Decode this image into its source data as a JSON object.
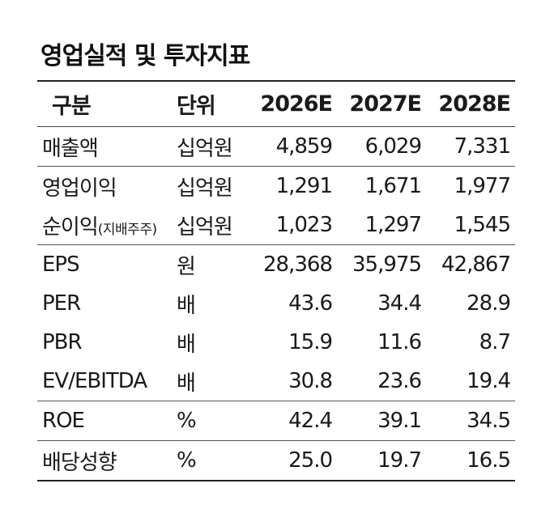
{
  "title": "영업실적 및 투자지표",
  "header": {
    "col0": "구분",
    "col1": "단위",
    "y1": "2026E",
    "y2": "2027E",
    "y3": "2028E"
  },
  "rows": [
    {
      "label": "매출액",
      "unit": "십억원",
      "v1": "4,859",
      "v2": "6,029",
      "v3": "7,331"
    },
    {
      "label": "영업이익",
      "unit": "십억원",
      "v1": "1,291",
      "v2": "1,671",
      "v3": "1,977"
    },
    {
      "label": "순이익",
      "label_sub": "(지배주주)",
      "unit": "십억원",
      "v1": "1,023",
      "v2": "1,297",
      "v3": "1,545"
    },
    {
      "label": "EPS",
      "unit": "원",
      "v1": "28,368",
      "v2": "35,975",
      "v3": "42,867"
    },
    {
      "label": "PER",
      "unit": "배",
      "v1": "43.6",
      "v2": "34.4",
      "v3": "28.9"
    },
    {
      "label": "PBR",
      "unit": "배",
      "v1": "15.9",
      "v2": "11.6",
      "v3": "8.7"
    },
    {
      "label": "EV/EBITDA",
      "unit": "배",
      "v1": "30.8",
      "v2": "23.6",
      "v3": "19.4"
    },
    {
      "label": "ROE",
      "unit": "%",
      "v1": "42.4",
      "v2": "39.1",
      "v3": "34.5"
    },
    {
      "label": "배당성향",
      "unit": "%",
      "v1": "25.0",
      "v2": "19.7",
      "v3": "16.5"
    }
  ]
}
